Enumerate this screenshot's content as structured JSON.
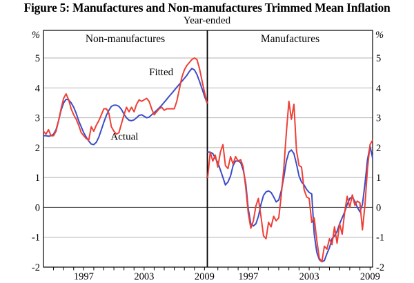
{
  "title": "Figure 5: Manufactures and Non-manufactures Trimmed Mean Inflation",
  "subtitle": "Year-ended",
  "colors": {
    "fitted": "#3b4cc8",
    "actual": "#ee3f35",
    "grid": "#b3b3b3",
    "zero_line": "#4a4a4a",
    "frame": "#000000"
  },
  "chart_data": {
    "type": "line",
    "title": "Figure 5: Manufactures and Non-manufactures Trimmed Mean Inflation",
    "subtitle": "Year-ended",
    "unit": "%",
    "grid": true,
    "x_start": 1993.0,
    "x_step_years": 0.25,
    "x_end": 2009.25,
    "ylim": [
      -2,
      5.925
    ],
    "yticks": [
      5,
      4,
      3,
      2,
      1,
      0,
      -1,
      -2
    ],
    "minor_xticks_every_year": true,
    "xtick_labeled_years": [
      1997,
      2003,
      2009
    ],
    "panels": [
      {
        "title": "Non-manufactures",
        "series": [
          {
            "name": "Fitted",
            "color_key": "fitted",
            "values": [
              2.4,
              2.4,
              2.38,
              2.4,
              2.45,
              2.6,
              2.9,
              3.25,
              3.5,
              3.62,
              3.6,
              3.5,
              3.35,
              3.15,
              2.9,
              2.7,
              2.5,
              2.35,
              2.22,
              2.12,
              2.1,
              2.18,
              2.35,
              2.6,
              2.85,
              3.08,
              3.25,
              3.38,
              3.42,
              3.42,
              3.38,
              3.28,
              3.12,
              3.0,
              2.92,
              2.9,
              2.93,
              3.0,
              3.08,
              3.1,
              3.05,
              3.0,
              3.02,
              3.1,
              3.17,
              3.25,
              3.33,
              3.42,
              3.52,
              3.62,
              3.72,
              3.82,
              3.92,
              4.02,
              4.12,
              4.22,
              4.32,
              4.42,
              4.55,
              4.65,
              4.6,
              4.45,
              4.22,
              3.98,
              3.72,
              3.5
            ]
          },
          {
            "name": "Actual",
            "color_key": "actual",
            "values": [
              2.55,
              2.45,
              2.6,
              2.4,
              2.4,
              2.55,
              2.9,
              3.3,
              3.65,
              3.8,
              3.6,
              3.3,
              3.1,
              2.95,
              2.75,
              2.5,
              2.4,
              2.3,
              2.25,
              2.7,
              2.55,
              2.75,
              2.9,
              3.1,
              3.3,
              3.3,
              3.15,
              2.7,
              2.55,
              2.45,
              2.5,
              2.8,
              3.1,
              3.35,
              3.2,
              3.35,
              3.2,
              3.45,
              3.6,
              3.55,
              3.6,
              3.65,
              3.55,
              3.3,
              3.1,
              3.2,
              3.3,
              3.35,
              3.25,
              3.3,
              3.3,
              3.3,
              3.3,
              3.55,
              3.95,
              4.35,
              4.6,
              4.75,
              4.85,
              4.95,
              5.0,
              4.95,
              4.65,
              4.25,
              3.85,
              3.5
            ]
          }
        ],
        "annotations": [
          {
            "text": "Fitted",
            "color_key": "fitted",
            "t": 2004.7,
            "v": 4.42
          },
          {
            "text": "Actual",
            "color_key": "actual",
            "t": 2001.05,
            "v": 2.26
          }
        ]
      },
      {
        "title": "Manufactures",
        "series": [
          {
            "name": "Fitted",
            "color_key": "fitted",
            "values": [
              1.85,
              1.85,
              1.8,
              1.65,
              1.5,
              1.25,
              1.0,
              0.75,
              0.85,
              1.05,
              1.4,
              1.55,
              1.55,
              1.5,
              1.25,
              0.8,
              -0.05,
              -0.55,
              -0.62,
              -0.55,
              -0.3,
              0.1,
              0.4,
              0.52,
              0.55,
              0.5,
              0.35,
              0.18,
              0.25,
              0.55,
              1.0,
              1.55,
              1.85,
              1.92,
              1.8,
              1.45,
              1.05,
              0.85,
              0.75,
              0.6,
              0.5,
              0.45,
              -0.9,
              -1.5,
              -1.75,
              -1.82,
              -1.78,
              -1.55,
              -1.35,
              -1.05,
              -0.95,
              -0.8,
              -0.55,
              -0.35,
              -0.15,
              0.1,
              0.3,
              0.35,
              0.2,
              0.0,
              -0.15,
              0.1,
              0.8,
              1.6,
              2.05,
              1.65
            ]
          },
          {
            "name": "Actual",
            "color_key": "actual",
            "values": [
              1.0,
              1.85,
              1.55,
              1.75,
              1.35,
              1.85,
              2.1,
              1.4,
              1.3,
              1.7,
              1.45,
              1.7,
              1.55,
              1.6,
              1.35,
              0.65,
              -0.2,
              -0.7,
              -0.45,
              0.05,
              0.3,
              -0.3,
              -0.95,
              -1.05,
              -0.5,
              -0.65,
              -0.3,
              -0.45,
              -0.35,
              0.4,
              1.3,
              2.5,
              3.55,
              2.95,
              3.45,
              1.9,
              1.4,
              1.35,
              0.6,
              0.35,
              0.3,
              -0.5,
              -0.35,
              -1.1,
              -1.7,
              -1.82,
              -1.3,
              -1.4,
              -1.05,
              -1.25,
              -0.65,
              -1.2,
              -0.55,
              -0.9,
              -0.15,
              0.37,
              0.0,
              0.42,
              0.07,
              0.21,
              0.15,
              -0.75,
              0.1,
              1.3,
              2.1,
              2.25
            ]
          }
        ],
        "annotations": []
      }
    ]
  }
}
